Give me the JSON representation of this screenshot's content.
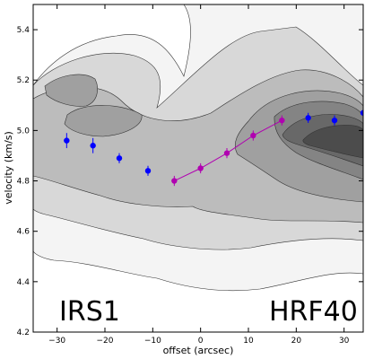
{
  "chart_data": {
    "type": "scatter",
    "title": "",
    "xlabel": "offset (arcsec)",
    "ylabel": "velocity (km/s)",
    "xlim": [
      -35,
      34
    ],
    "ylim": [
      4.2,
      5.5
    ],
    "xticks": [
      -30,
      -20,
      -10,
      0,
      10,
      20,
      30
    ],
    "yticks": [
      4.2,
      4.4,
      4.6,
      4.8,
      5.0,
      5.2,
      5.4
    ],
    "xtick_labels": [
      "−30",
      "−20",
      "−10",
      "0",
      "10",
      "20",
      "30"
    ],
    "ytick_labels": [
      "4.2",
      "4.4",
      "4.6",
      "4.8",
      "5.0",
      "5.2",
      "5.4"
    ],
    "grid": false,
    "annotations": [
      "IRS1",
      "HRF40"
    ],
    "series": [
      {
        "color": "#0000ff",
        "connected": false,
        "x": [
          -28,
          -22.5,
          -17,
          -11,
          22.5,
          28,
          34
        ],
        "y": [
          4.96,
          4.94,
          4.89,
          4.84,
          5.05,
          5.04,
          5.07
        ],
        "yerr": [
          0.03,
          0.03,
          0.02,
          0.02,
          0.02,
          0.02,
          0.02
        ]
      },
      {
        "color": "#b000b0",
        "connected": true,
        "x": [
          -5.5,
          0,
          5.5,
          11,
          17
        ],
        "y": [
          4.8,
          4.85,
          4.91,
          4.98,
          5.04
        ],
        "yerr": [
          0.02,
          0.02,
          0.02,
          0.02,
          0.02
        ]
      }
    ],
    "contour_fills": [
      "#f4f4f4",
      "#d8d8d8",
      "#bcbcbc",
      "#a0a0a0",
      "#848484",
      "#686868",
      "#4c4c4c"
    ]
  }
}
